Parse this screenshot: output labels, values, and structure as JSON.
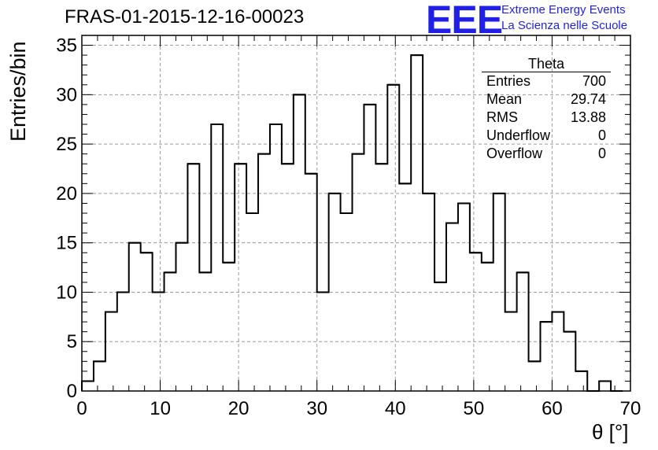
{
  "header": {
    "run_title": "FRAS-01-2015-12-16-00023",
    "logo_text": "EEE",
    "logo_line1": "Extreme Energy Events",
    "logo_line2": "La Scienza nelle Scuole",
    "logo_color": "#1f1fe6"
  },
  "stats": {
    "title": "Theta",
    "rows": [
      {
        "label": "Entries",
        "value": "700"
      },
      {
        "label": "Mean",
        "value": "29.74"
      },
      {
        "label": "RMS",
        "value": "13.88"
      },
      {
        "label": "Underflow",
        "value": "0"
      },
      {
        "label": "Overflow",
        "value": "0"
      }
    ]
  },
  "chart_data": {
    "type": "bar",
    "style": "step-histogram",
    "title": "FRAS-01-2015-12-16-00023",
    "xlabel": "θ [°]",
    "ylabel": "Entries/bin",
    "xlim": [
      0,
      70
    ],
    "ylim": [
      0,
      36
    ],
    "bin_width": 1.5,
    "bin_edges_start": 0,
    "values": [
      1,
      3,
      8,
      10,
      15,
      14,
      10,
      12,
      15,
      23,
      12,
      27,
      13,
      23,
      18,
      24,
      27,
      23,
      30,
      22,
      10,
      20,
      18,
      24,
      29,
      23,
      31,
      21,
      34,
      20,
      11,
      17,
      19,
      14,
      13,
      20,
      8,
      12,
      3,
      7,
      8,
      6,
      2,
      0,
      1,
      0
    ],
    "x_ticks": [
      "0",
      "10",
      "20",
      "30",
      "40",
      "50",
      "60",
      "70"
    ],
    "y_ticks": [
      "0",
      "5",
      "10",
      "15",
      "20",
      "25",
      "30",
      "35"
    ],
    "grid": true,
    "line_color": "#000000"
  }
}
